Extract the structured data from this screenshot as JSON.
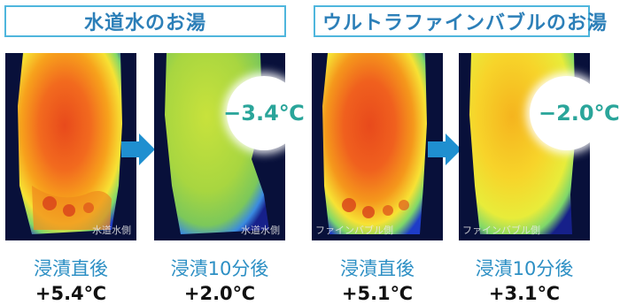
{
  "left_group": {
    "header": "水道水のお湯",
    "panels": [
      {
        "caption": "浸漬直後",
        "value": "+5.4℃",
        "stamp": "水道水側",
        "palette": "hot"
      },
      {
        "caption": "浸漬10分後",
        "value": "+2.0℃",
        "stamp": "水道水側",
        "palette": "cool"
      }
    ],
    "difference": "−3.4℃"
  },
  "right_group": {
    "header": "ウルトラファインバブルのお湯",
    "panels": [
      {
        "caption": "浸漬直後",
        "value": "+5.1℃",
        "stamp": "ファインバブル側",
        "palette": "hot"
      },
      {
        "caption": "浸漬10分後",
        "value": "+3.1℃",
        "stamp": "ファインバブル側",
        "palette": "warm"
      }
    ],
    "difference": "−2.0℃"
  },
  "colors": {
    "header_border": "#4fb6dd",
    "header_text": "#2c7fb8",
    "caption": "#2c8fc4",
    "arrow": "#1f8fd0",
    "difference_text": "#2aa59a"
  }
}
